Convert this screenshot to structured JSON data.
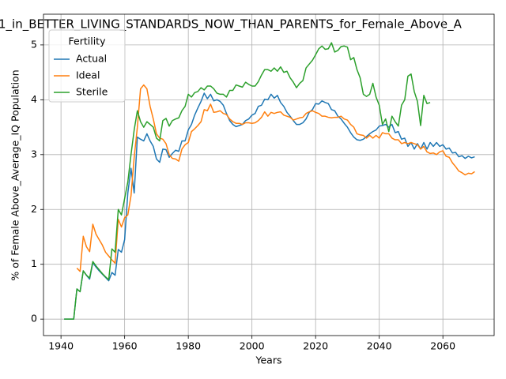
{
  "chart_data": {
    "type": "line",
    "title": "1_in_BETTER_LIVING_STANDARDS_NOW_THAN_PARENTS_for_Female_Above_A",
    "xlabel": "Years",
    "ylabel": "% of Female Above_Average_IQ Population",
    "legend_title": "Fertility",
    "legend": "upper left",
    "grid": true,
    "xlim": [
      1934.5,
      2076.1
    ],
    "ylim": [
      -0.3,
      5.56
    ],
    "xticks": [
      1940,
      1960,
      1980,
      2000,
      2020,
      2040,
      2060
    ],
    "yticks": [
      0,
      1,
      2,
      3,
      4,
      5
    ],
    "x": [
      1941,
      1942,
      1943,
      1944,
      1945,
      1946,
      1947,
      1948,
      1949,
      1950,
      1951,
      1952,
      1953,
      1954,
      1955,
      1956,
      1957,
      1958,
      1959,
      1960,
      1961,
      1962,
      1963,
      1964,
      1965,
      1966,
      1967,
      1968,
      1969,
      1970,
      1971,
      1972,
      1973,
      1974,
      1975,
      1976,
      1977,
      1978,
      1979,
      1980,
      1981,
      1982,
      1983,
      1984,
      1985,
      1986,
      1987,
      1988,
      1989,
      1990,
      1991,
      1992,
      1993,
      1994,
      1995,
      1996,
      1997,
      1998,
      1999,
      2000,
      2001,
      2002,
      2003,
      2004,
      2005,
      2006,
      2007,
      2008,
      2009,
      2010,
      2011,
      2012,
      2013,
      2014,
      2015,
      2016,
      2017,
      2018,
      2019,
      2020,
      2021,
      2022,
      2023,
      2024,
      2025,
      2026,
      2027,
      2028,
      2029,
      2030,
      2031,
      2032,
      2033,
      2034,
      2035,
      2036,
      2037,
      2038,
      2039,
      2040,
      2041,
      2042,
      2043,
      2044,
      2045,
      2046,
      2047,
      2048,
      2049,
      2050,
      2051,
      2052,
      2053,
      2054,
      2055,
      2056,
      2057,
      2058,
      2059,
      2060,
      2061,
      2062,
      2063,
      2064,
      2065,
      2066,
      2067,
      2068,
      2069,
      2070
    ],
    "series": [
      {
        "name": "Actual",
        "color": "#1f77b4",
        "values": [
          0,
          0,
          0,
          0,
          0.55,
          0.5,
          0.88,
          0.8,
          0.73,
          1.03,
          0.95,
          0.88,
          0.82,
          0.76,
          0.7,
          0.85,
          0.8,
          1.27,
          1.22,
          1.45,
          2.3,
          2.75,
          2.3,
          3.32,
          3.28,
          3.25,
          3.38,
          3.25,
          3.15,
          2.92,
          2.86,
          3.1,
          3.09,
          2.95,
          3.02,
          3.08,
          3.06,
          3.25,
          3.25,
          3.45,
          3.55,
          3.72,
          3.85,
          3.97,
          4.12,
          4.02,
          4.1,
          3.98,
          4.0,
          3.97,
          3.9,
          3.75,
          3.62,
          3.55,
          3.51,
          3.53,
          3.55,
          3.62,
          3.65,
          3.72,
          3.75,
          3.88,
          3.9,
          4.01,
          4.0,
          4.1,
          4.03,
          4.08,
          3.95,
          3.88,
          3.77,
          3.7,
          3.62,
          3.55,
          3.55,
          3.58,
          3.65,
          3.77,
          3.82,
          3.93,
          3.92,
          3.98,
          3.95,
          3.93,
          3.82,
          3.8,
          3.7,
          3.65,
          3.57,
          3.5,
          3.4,
          3.32,
          3.27,
          3.26,
          3.28,
          3.33,
          3.38,
          3.42,
          3.45,
          3.52,
          3.53,
          3.55,
          3.5,
          3.55,
          3.4,
          3.42,
          3.28,
          3.3,
          3.15,
          3.22,
          3.1,
          3.2,
          3.1,
          3.22,
          3.1,
          3.22,
          3.15,
          3.22,
          3.15,
          3.18,
          3.1,
          3.12,
          3.03,
          3.04,
          2.96,
          2.98,
          2.93,
          2.97,
          2.94,
          2.96
        ]
      },
      {
        "name": "Ideal",
        "color": "#ff7f0e",
        "values": [
          null,
          null,
          null,
          null,
          0.93,
          0.87,
          1.51,
          1.32,
          1.23,
          1.73,
          1.55,
          1.45,
          1.35,
          1.22,
          1.15,
          1.08,
          1.02,
          1.82,
          1.68,
          1.85,
          1.9,
          2.25,
          2.95,
          3.5,
          4.2,
          4.27,
          4.2,
          3.88,
          3.65,
          3.38,
          3.3,
          3.28,
          3.2,
          3.0,
          2.93,
          2.92,
          2.88,
          3.1,
          3.18,
          3.22,
          3.42,
          3.47,
          3.53,
          3.6,
          3.82,
          3.8,
          3.92,
          3.77,
          3.78,
          3.8,
          3.75,
          3.73,
          3.65,
          3.6,
          3.57,
          3.57,
          3.55,
          3.58,
          3.58,
          3.57,
          3.58,
          3.62,
          3.68,
          3.78,
          3.7,
          3.77,
          3.75,
          3.77,
          3.78,
          3.72,
          3.7,
          3.68,
          3.63,
          3.65,
          3.67,
          3.68,
          3.75,
          3.78,
          3.8,
          3.77,
          3.75,
          3.7,
          3.7,
          3.68,
          3.67,
          3.68,
          3.68,
          3.7,
          3.65,
          3.63,
          3.55,
          3.5,
          3.38,
          3.36,
          3.35,
          3.3,
          3.35,
          3.3,
          3.35,
          3.3,
          3.4,
          3.38,
          3.38,
          3.3,
          3.27,
          3.27,
          3.2,
          3.22,
          3.2,
          3.22,
          3.2,
          3.18,
          3.1,
          3.15,
          3.05,
          3.02,
          3.03,
          3.0,
          3.05,
          3.07,
          2.97,
          2.95,
          2.85,
          2.78,
          2.7,
          2.67,
          2.63,
          2.66,
          2.65,
          2.69
        ]
      },
      {
        "name": "Sterile",
        "color": "#2ca02c",
        "values": [
          0,
          0,
          0,
          0,
          0.55,
          0.5,
          0.88,
          0.8,
          0.75,
          1.05,
          0.97,
          0.9,
          0.83,
          0.77,
          0.72,
          1.28,
          1.22,
          2.0,
          1.9,
          2.2,
          2.5,
          3.0,
          3.45,
          3.8,
          3.6,
          3.5,
          3.6,
          3.55,
          3.5,
          3.3,
          3.25,
          3.62,
          3.66,
          3.52,
          3.62,
          3.65,
          3.67,
          3.8,
          3.88,
          4.1,
          4.05,
          4.13,
          4.15,
          4.22,
          4.18,
          4.25,
          4.25,
          4.2,
          4.12,
          4.1,
          4.1,
          4.05,
          4.17,
          4.17,
          4.27,
          4.25,
          4.23,
          4.32,
          4.28,
          4.25,
          4.25,
          4.33,
          4.45,
          4.55,
          4.55,
          4.52,
          4.58,
          4.52,
          4.6,
          4.5,
          4.52,
          4.4,
          4.32,
          4.22,
          4.3,
          4.35,
          4.58,
          4.65,
          4.72,
          4.82,
          4.93,
          4.98,
          4.92,
          4.93,
          5.04,
          4.87,
          4.9,
          4.97,
          4.98,
          4.96,
          4.73,
          4.77,
          4.55,
          4.4,
          4.1,
          4.06,
          4.1,
          4.3,
          4.05,
          3.9,
          3.55,
          3.65,
          3.42,
          3.7,
          3.6,
          3.52,
          3.9,
          4.0,
          4.43,
          4.47,
          4.15,
          3.97,
          3.53,
          4.08,
          3.93,
          3.95,
          null,
          null,
          null,
          null,
          null,
          null,
          null,
          null,
          null,
          null,
          null,
          null,
          null,
          null
        ]
      }
    ]
  }
}
